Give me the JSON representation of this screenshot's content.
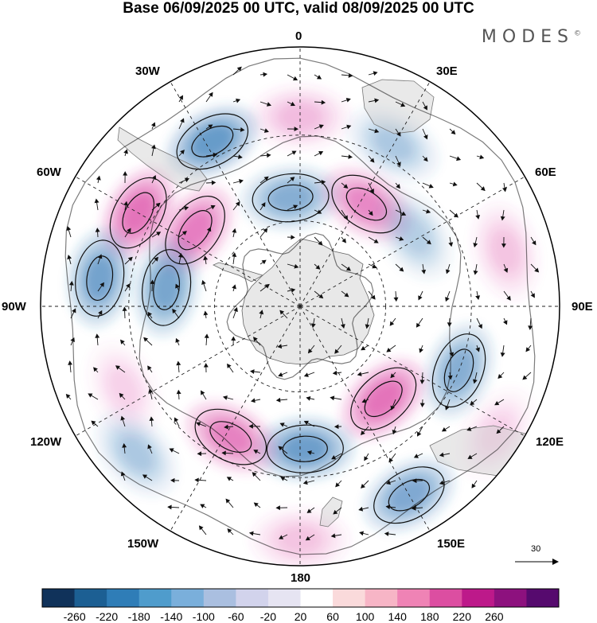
{
  "title": "Base 06/09/2025 00 UTC, valid 08/09/2025 00 UTC",
  "brand": "MODES",
  "brand_mark": "©",
  "longitude_labels": {
    "top": "0",
    "bottom": "180",
    "left": "90W",
    "right": "90E",
    "w30": "30W",
    "e30": "30E",
    "w60": "60W",
    "e60": "60E",
    "w120": "120W",
    "e120": "120E",
    "w150": "150W",
    "e150": "150E"
  },
  "vector_scale_label": "30",
  "colorbar": {
    "ticks": [
      "-260",
      "-220",
      "-180",
      "-140",
      "-100",
      "-60",
      "-20",
      "20",
      "60",
      "100",
      "140",
      "180",
      "220",
      "260"
    ],
    "colors": [
      "#10325a",
      "#1c5f93",
      "#2f7db7",
      "#4f9ccc",
      "#7aafdb",
      "#aabfe0",
      "#d2d3ec",
      "#e6e4f2",
      "#ffffff",
      "#fadadb",
      "#f7b5c6",
      "#ef83b5",
      "#dc4ea1",
      "#bd198a",
      "#8d117e",
      "#560a6e"
    ]
  },
  "field": {
    "pos_color": "#d93da0",
    "neg_color": "#2d73b3",
    "anomalies": [
      {
        "lon": 0,
        "r": 0.73,
        "sign": 1,
        "mag": 0.4
      },
      {
        "lon": -28,
        "r": 0.72,
        "sign": -1,
        "mag": 1.0
      },
      {
        "lon": 30,
        "r": 0.72,
        "sign": -1,
        "mag": 0.45
      },
      {
        "lon": -60,
        "r": 0.72,
        "sign": 1,
        "mag": 1.0
      },
      {
        "lon": -54,
        "r": 0.5,
        "sign": 1,
        "mag": 0.9
      },
      {
        "lon": -5,
        "r": 0.42,
        "sign": -1,
        "mag": 0.75
      },
      {
        "lon": 33,
        "r": 0.47,
        "sign": 1,
        "mag": 0.8
      },
      {
        "lon": 58,
        "r": 0.52,
        "sign": -1,
        "mag": 0.4
      },
      {
        "lon": 75,
        "r": 0.82,
        "sign": 1,
        "mag": 0.35
      },
      {
        "lon": -82,
        "r": 0.78,
        "sign": -1,
        "mag": 0.9
      },
      {
        "lon": -82,
        "r": 0.52,
        "sign": -1,
        "mag": 0.85
      },
      {
        "lon": 112,
        "r": 0.66,
        "sign": -1,
        "mag": 0.75
      },
      {
        "lon": 138,
        "r": 0.48,
        "sign": 1,
        "mag": 1.0
      },
      {
        "lon": 150,
        "r": 0.84,
        "sign": -1,
        "mag": 0.8
      },
      {
        "lon": 178,
        "r": 0.55,
        "sign": -1,
        "mag": 0.95
      },
      {
        "lon": -152,
        "r": 0.57,
        "sign": 1,
        "mag": 0.85
      },
      {
        "lon": -132,
        "r": 0.85,
        "sign": -1,
        "mag": 0.45
      },
      {
        "lon": 180,
        "r": 0.9,
        "sign": 1,
        "mag": 0.35
      },
      {
        "lon": -115,
        "r": 0.75,
        "sign": 1,
        "mag": 0.25
      },
      {
        "lon": 123,
        "r": 0.9,
        "sign": 1,
        "mag": 0.25
      }
    ]
  }
}
